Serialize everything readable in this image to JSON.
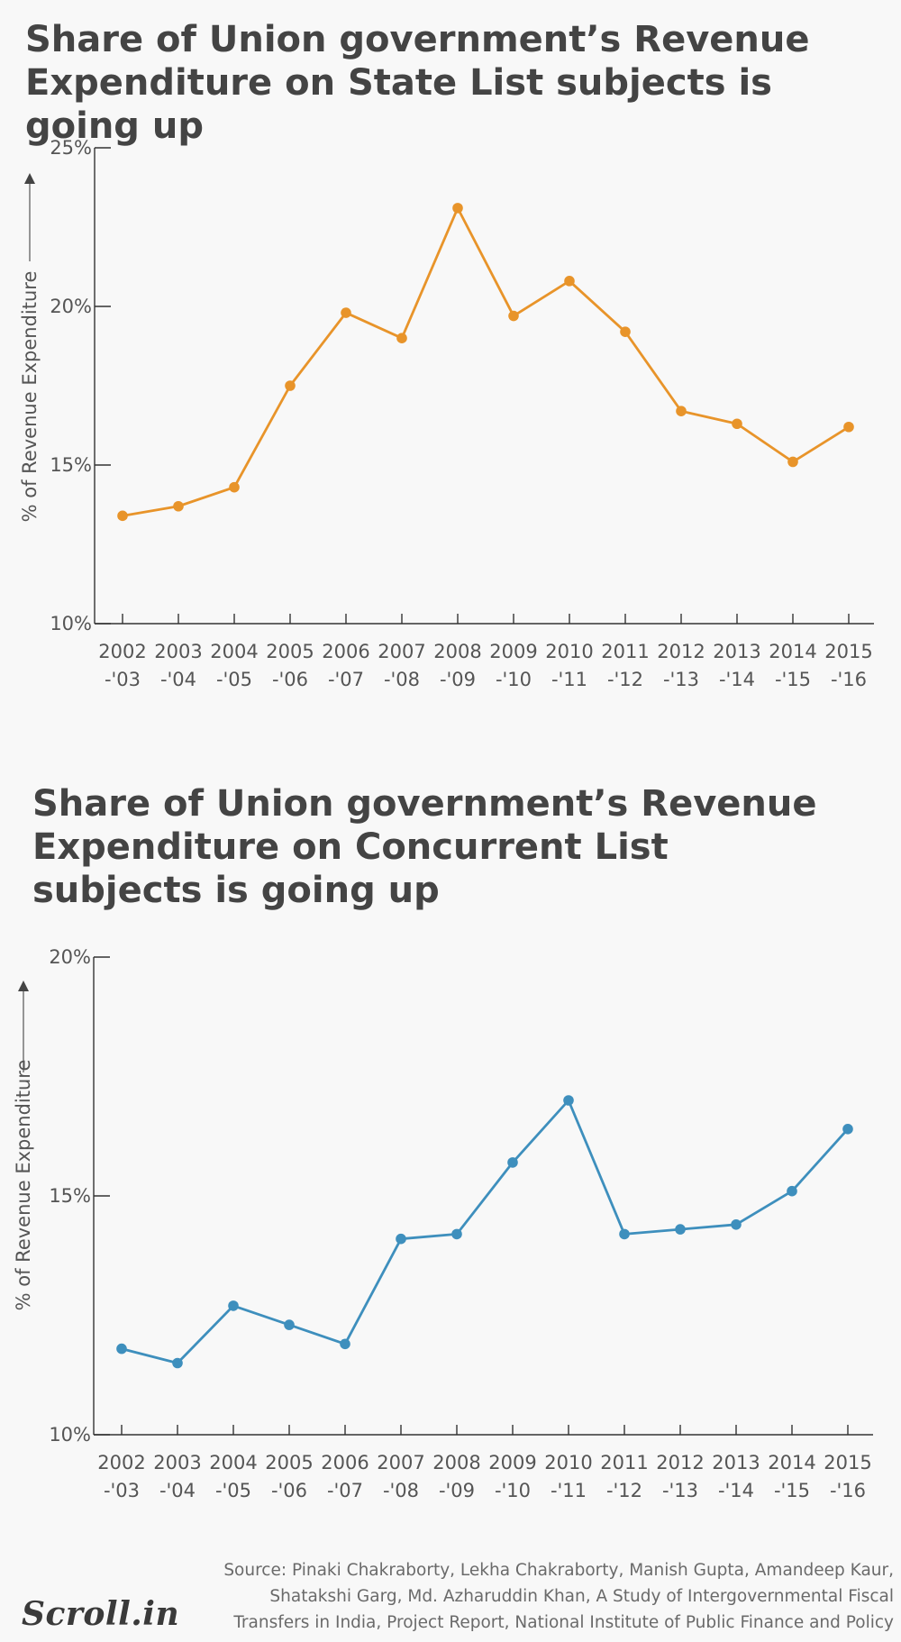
{
  "source": {
    "lines": [
      "Source: Pinaki Chakraborty,  Lekha Chakraborty, Manish Gupta, Amandeep Kaur,",
      "Shatakshi Garg, Md. Azharuddin Khan, A Study of Intergovernmental Fiscal",
      "Transfers in India, Project Report, National Institute of Public Finance and Policy"
    ]
  },
  "logo": {
    "text": "Scroll.in"
  },
  "chart_data": [
    {
      "type": "line",
      "title": "Share of Union government’s Revenue Expenditure on State List subjects is going up",
      "xlabel": "",
      "ylabel": "% of Revenue Expenditure",
      "ylim": [
        10,
        25
      ],
      "yticks": [
        10,
        15,
        20,
        25
      ],
      "ytick_labels": [
        "10%",
        "15%",
        "20%",
        "25%"
      ],
      "color": "#e8942a",
      "grid": false,
      "categories": [
        [
          "2002",
          "-'03"
        ],
        [
          "2003",
          "-'04"
        ],
        [
          "2004",
          "-'05"
        ],
        [
          "2005",
          "-'06"
        ],
        [
          "2006",
          "-'07"
        ],
        [
          "2007",
          "-'08"
        ],
        [
          "2008",
          "-'09"
        ],
        [
          "2009",
          "-'10"
        ],
        [
          "2010",
          "-'11"
        ],
        [
          "2011",
          "-'12"
        ],
        [
          "2012",
          "-'13"
        ],
        [
          "2013",
          "-'14"
        ],
        [
          "2014",
          "-'15"
        ],
        [
          "2015",
          "-'16"
        ]
      ],
      "values": [
        13.4,
        13.7,
        14.3,
        17.5,
        19.8,
        19.0,
        23.1,
        19.7,
        20.8,
        19.2,
        16.7,
        16.3,
        15.1,
        16.2
      ]
    },
    {
      "type": "line",
      "title": "Share of Union government’s Revenue Expenditure on Concurrent List subjects is going up",
      "xlabel": "",
      "ylabel": "% of Revenue Expenditure",
      "ylim": [
        10,
        20
      ],
      "yticks": [
        10,
        15,
        20
      ],
      "ytick_labels": [
        "10%",
        "15%",
        "20%"
      ],
      "color": "#3e8fbd",
      "grid": false,
      "categories": [
        [
          "2002",
          "-'03"
        ],
        [
          "2003",
          "-'04"
        ],
        [
          "2004",
          "-'05"
        ],
        [
          "2005",
          "-'06"
        ],
        [
          "2006",
          "-'07"
        ],
        [
          "2007",
          "-'08"
        ],
        [
          "2008",
          "-'09"
        ],
        [
          "2009",
          "-'10"
        ],
        [
          "2010",
          "-'11"
        ],
        [
          "2011",
          "-'12"
        ],
        [
          "2012",
          "-'13"
        ],
        [
          "2013",
          "-'14"
        ],
        [
          "2014",
          "-'15"
        ],
        [
          "2015",
          "-'16"
        ]
      ],
      "values": [
        11.8,
        11.5,
        12.7,
        12.3,
        11.9,
        14.1,
        14.2,
        15.7,
        17.0,
        14.2,
        14.3,
        14.4,
        15.1,
        16.4
      ]
    }
  ]
}
